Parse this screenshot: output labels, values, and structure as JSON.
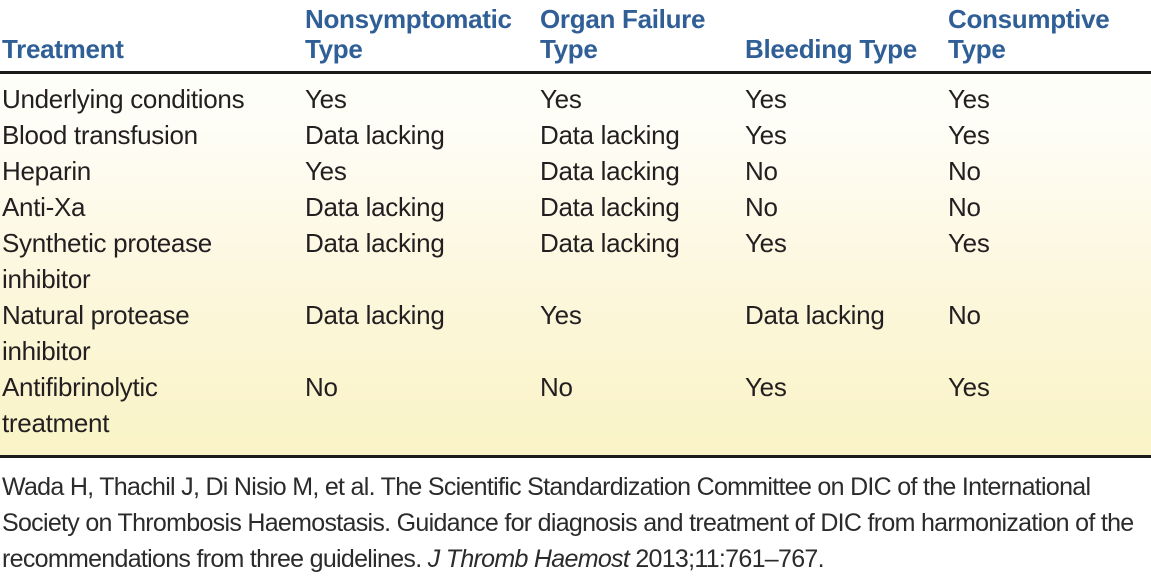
{
  "colors": {
    "header_text": "#2f5f96",
    "body_text": "#231f20",
    "rule": "#1b1b1b",
    "body_gradient_top": "#ffffff",
    "body_gradient_bottom": "#faf3c6"
  },
  "table": {
    "columns": [
      "Treatment",
      "Nonsymptomatic Type",
      "Organ Failure Type",
      "Bleeding Type",
      "Consumptive Type"
    ],
    "rows": [
      {
        "treatment": "Underlying conditions",
        "values": [
          "Yes",
          "Yes",
          "Yes",
          "Yes"
        ]
      },
      {
        "treatment": "Blood transfusion",
        "values": [
          "Data lacking",
          "Data lacking",
          "Yes",
          "Yes"
        ]
      },
      {
        "treatment": "Heparin",
        "values": [
          "Yes",
          "Data lacking",
          "No",
          "No"
        ]
      },
      {
        "treatment": "Anti-Xa",
        "values": [
          "Data lacking",
          "Data lacking",
          "No",
          "No"
        ]
      },
      {
        "treatment": "Synthetic protease inhibitor",
        "values": [
          "Data lacking",
          "Data lacking",
          "Yes",
          "Yes"
        ]
      },
      {
        "treatment": "Natural protease inhibitor",
        "values": [
          "Data lacking",
          "Yes",
          "Data lacking",
          "No"
        ]
      },
      {
        "treatment": "Antifibrinolytic treatment",
        "values": [
          "No",
          "No",
          "Yes",
          "Yes"
        ]
      }
    ]
  },
  "citation": {
    "text_before_italic": "Wada H, Thachil J, Di Nisio M, et al. The Scientific Standardization Committee on DIC of the International Society on Thrombosis Haemostasis. Guidance for diagnosis and treatment of DIC from harmonization of the recommendations from three guidelines. ",
    "italic": "J Thromb Haemost",
    "text_after_italic": " 2013;11:761–767."
  }
}
